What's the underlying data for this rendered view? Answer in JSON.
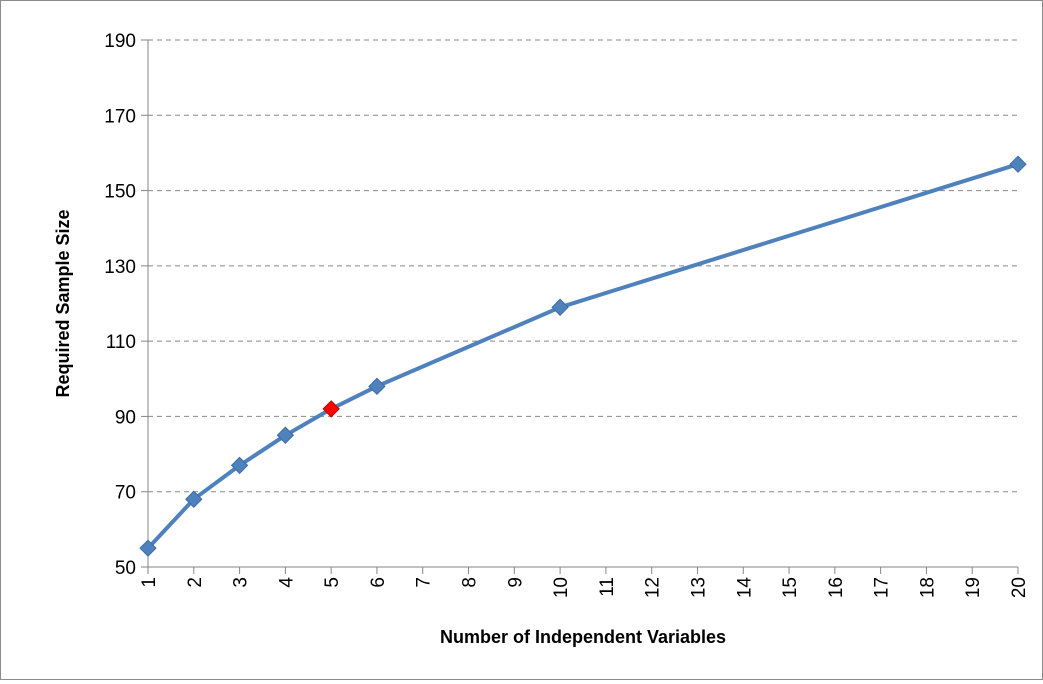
{
  "chart_data": {
    "type": "line",
    "title": "",
    "xlabel": "Number of Independent Variables",
    "ylabel": "Required Sample Size",
    "categories": [
      "1",
      "2",
      "3",
      "4",
      "5",
      "6",
      "7",
      "8",
      "9",
      "10",
      "11",
      "12",
      "13",
      "14",
      "15",
      "16",
      "17",
      "18",
      "19",
      "20"
    ],
    "series": [
      {
        "points": [
          {
            "x": 1,
            "y": 55
          },
          {
            "x": 2,
            "y": 68
          },
          {
            "x": 3,
            "y": 77
          },
          {
            "x": 4,
            "y": 85
          },
          {
            "x": 5,
            "y": 92,
            "highlight": true
          },
          {
            "x": 6,
            "y": 98
          },
          {
            "x": 10,
            "y": 119
          },
          {
            "x": 20,
            "y": 157
          }
        ]
      }
    ],
    "y_ticks": [
      50,
      70,
      90,
      110,
      130,
      150,
      170,
      190
    ],
    "ylim": [
      50,
      190
    ],
    "xlim": [
      1,
      20
    ],
    "grid": "horizontal dashed",
    "legend": "none",
    "colors": {
      "line": "#4f81bd",
      "marker": "#4f81bd",
      "highlight_marker": "#ff0000",
      "grid": "#888888",
      "axis": "#868686"
    }
  }
}
